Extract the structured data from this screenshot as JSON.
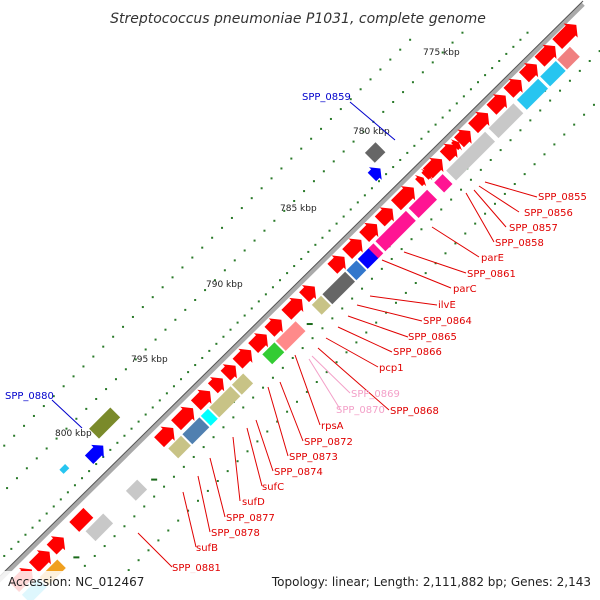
{
  "title": "Streptococcus pneumoniae P1031, complete genome",
  "footer": {
    "accession": "Accession: NC_012467",
    "stats": "Topology: linear; Length: 2,111,882 bp; Genes: 2,143"
  },
  "ticks": [
    "775 kbp",
    "780 kbp",
    "785 kbp",
    "790 kbp",
    "795 kbp",
    "800 kbp"
  ],
  "colors": {
    "forward_gene": "#ff0000",
    "magenta_gene": "#ff1493",
    "grey_gene": "#c8c8c8",
    "cyan_gene": "#27c5f0",
    "blue_gene": "#0000ff",
    "khaki_gene": "#c8c386",
    "label_red": "#e00000",
    "label_blue": "#0000cc",
    "label_pink": "#f3a0c8",
    "backbone": "#999999",
    "tick_green": "#2a8a2a"
  },
  "labels": {
    "blue": [
      "SPP_0859",
      "SPP_0880"
    ],
    "red": [
      "SPP_0855",
      "SPP_0856",
      "SPP_0857",
      "SPP_0858",
      "parE",
      "SPP_0861",
      "parC",
      "ilvE",
      "SPP_0864",
      "SPP_0865",
      "SPP_0866",
      "pcp1",
      "SPP_0868",
      "rpsA",
      "SPP_0872",
      "SPP_0873",
      "SPP_0874",
      "sufC",
      "sufD",
      "SPP_0877",
      "SPP_0878",
      "sufB",
      "SPP_0881"
    ],
    "pink": [
      "SPP_0869",
      "SPP_0870"
    ]
  }
}
